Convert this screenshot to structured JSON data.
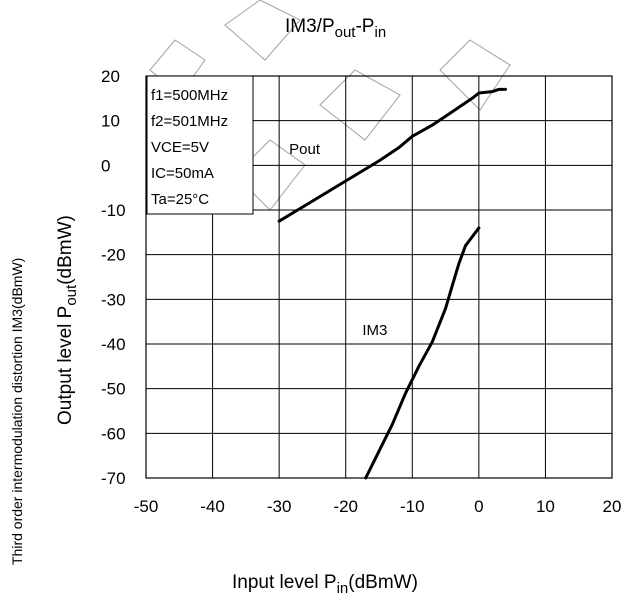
{
  "chart_data": {
    "type": "line",
    "title_main": "IM3/P",
    "title_sub1": "out",
    "title_mid": "-P",
    "title_sub2": "in",
    "xlabel_main": "Input level P",
    "xlabel_sub": "in",
    "xlabel_unit": "(dBmW)",
    "ylabel_outer": "Third order intermodulation distortion IM3(dBmW)",
    "ylabel_inner_main": "Output level P",
    "ylabel_inner_sub": "out",
    "ylabel_inner_unit": "(dBmW)",
    "xlim": [
      -50,
      20
    ],
    "ylim": [
      -70,
      20
    ],
    "x_ticks": [
      -50,
      -40,
      -30,
      -20,
      -10,
      0,
      10,
      20
    ],
    "x_tick_labels": [
      "-50",
      "-40",
      "-30",
      "-20",
      "-10",
      "0",
      "10",
      "20"
    ],
    "y_ticks": [
      20,
      10,
      0,
      -10,
      -20,
      -30,
      -40,
      -50,
      -60,
      -70
    ],
    "y_tick_labels": [
      "20",
      "10",
      "0",
      "-10",
      "-20",
      "-30",
      "-40",
      "-50",
      "-60",
      "-70"
    ],
    "grid": true,
    "conditions": [
      "f1=500MHz",
      "f2=501MHz",
      "VCE=5V",
      "IC=50mA",
      "Ta=25°C"
    ],
    "series": [
      {
        "name": "Pout",
        "label_at": [
          -28.5,
          2.5
        ],
        "points": [
          [
            -30,
            -12.5
          ],
          [
            -25,
            -8
          ],
          [
            -20,
            -3.5
          ],
          [
            -15,
            1
          ],
          [
            -12,
            4
          ],
          [
            -10,
            6.5
          ],
          [
            -7,
            9
          ],
          [
            -5,
            11
          ],
          [
            -3,
            13
          ],
          [
            -1,
            15
          ],
          [
            0,
            16.2
          ],
          [
            2,
            16.5
          ],
          [
            3,
            17
          ],
          [
            4,
            17
          ]
        ]
      },
      {
        "name": "IM3",
        "label_at": [
          -17.5,
          -38
        ],
        "points": [
          [
            -17,
            -70
          ],
          [
            -15,
            -64
          ],
          [
            -13,
            -58
          ],
          [
            -11,
            -51
          ],
          [
            -9,
            -45
          ],
          [
            -7,
            -39.5
          ],
          [
            -5,
            -32
          ],
          [
            -4,
            -27
          ],
          [
            -3,
            -22
          ],
          [
            -2,
            -18
          ],
          [
            -1,
            -16
          ],
          [
            0,
            -14
          ]
        ]
      }
    ]
  }
}
